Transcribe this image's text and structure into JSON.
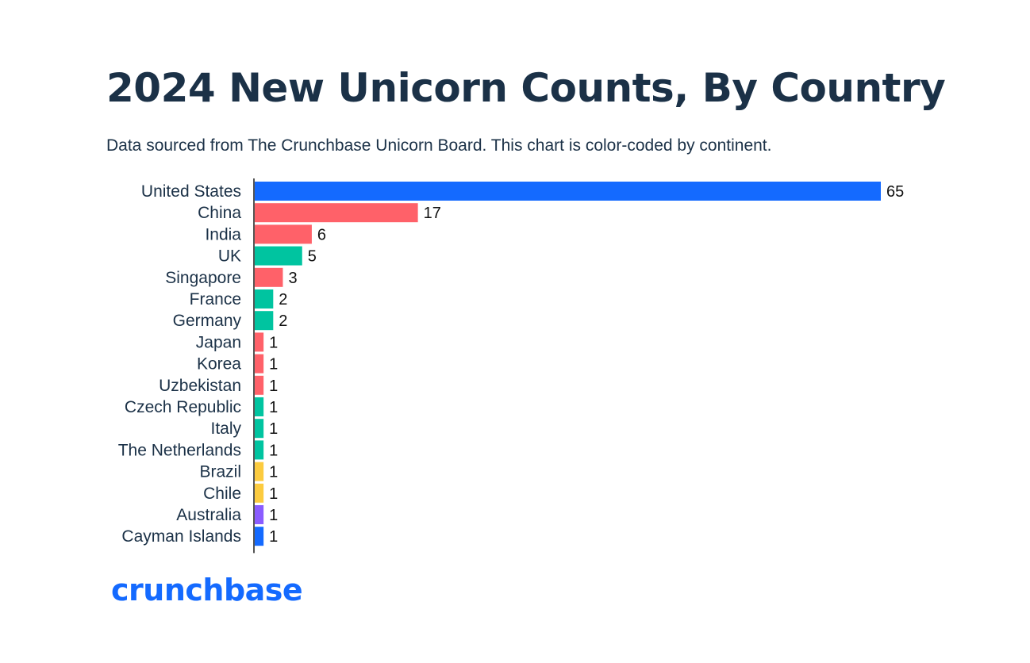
{
  "title": "2024 New Unicorn Counts, By Country",
  "subtitle": "Data sourced from The Crunchbase Unicorn Board. This chart is color-coded by continent.",
  "logo_text": "crunchbase",
  "colors": {
    "north_america": "#146aff",
    "asia": "#ff6169",
    "europe": "#00c4a0",
    "south_america": "#fccb3f",
    "oceania": "#8a5cff",
    "axis": "#555555"
  },
  "chart_data": {
    "type": "bar",
    "orientation": "horizontal",
    "title": "2024 New Unicorn Counts, By Country",
    "categories": [
      "United States",
      "China",
      "India",
      "UK",
      "Singapore",
      "France",
      "Germany",
      "Japan",
      "Korea",
      "Uzbekistan",
      "Czech Republic",
      "Italy",
      "The Netherlands",
      "Brazil",
      "Chile",
      "Australia",
      "Cayman Islands"
    ],
    "values": [
      65,
      17,
      6,
      5,
      3,
      2,
      2,
      1,
      1,
      1,
      1,
      1,
      1,
      1,
      1,
      1,
      1
    ],
    "bar_colors": [
      "#146aff",
      "#ff6169",
      "#ff6169",
      "#00c4a0",
      "#ff6169",
      "#00c4a0",
      "#00c4a0",
      "#ff6169",
      "#ff6169",
      "#ff6169",
      "#00c4a0",
      "#00c4a0",
      "#00c4a0",
      "#fccb3f",
      "#fccb3f",
      "#8a5cff",
      "#146aff"
    ],
    "data_labels": true,
    "xlim": [
      0,
      65
    ],
    "grid": false,
    "legend": "none"
  }
}
